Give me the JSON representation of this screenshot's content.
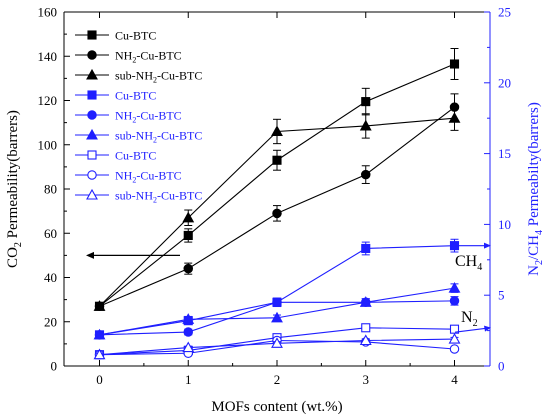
{
  "chart_data": {
    "type": "line",
    "x": [
      0,
      1,
      2,
      3,
      4
    ],
    "xlabel": "MOFs content (wt.%)",
    "xlim": [
      -0.4,
      4.4
    ],
    "x_ticks": [
      "0",
      "1",
      "2",
      "3",
      "4"
    ],
    "ylabel_left": {
      "pre": "CO",
      "sub": "2",
      "post": " Permeability(barrers)"
    },
    "ylim_left": [
      0,
      160
    ],
    "y_ticks_left": [
      "0",
      "20",
      "40",
      "60",
      "80",
      "100",
      "120",
      "140",
      "160"
    ],
    "ylabel_right": {
      "a": "N",
      "a_sub": "2",
      "mid": "/CH",
      "b_sub": "4",
      "post": " Permeabilty(barrers)"
    },
    "ylim_right": [
      0,
      25
    ],
    "y_ticks_right": [
      "0",
      "5",
      "10",
      "15",
      "20",
      "25"
    ],
    "annotations": {
      "ch4": {
        "pre": "CH",
        "sub": "4"
      },
      "n2": {
        "pre": "N",
        "sub": "2"
      }
    },
    "colors": {
      "black": "#000000",
      "blue": "#1f1fff",
      "right_axis": "#2323ff"
    },
    "grid": false,
    "legend_position": "top-left",
    "series": [
      {
        "name": "Cu-BTC",
        "name_parts": [
          "Cu-BTC"
        ],
        "axis": "left",
        "color": "#000000",
        "marker": "square-filled",
        "values": [
          27,
          59,
          93,
          119.5,
          136.5
        ],
        "errors": [
          1.5,
          3,
          4.5,
          6,
          7
        ]
      },
      {
        "name": "NH2-Cu-BTC",
        "name_parts": [
          "NH",
          "2",
          "-Cu-BTC"
        ],
        "axis": "left",
        "color": "#000000",
        "marker": "circle-filled",
        "values": [
          27,
          44,
          69,
          86.5,
          117
        ],
        "errors": [
          1.5,
          2.5,
          3.5,
          4,
          6
        ]
      },
      {
        "name": "sub-NH2-Cu-BTC",
        "name_parts": [
          "sub-NH",
          "2",
          "-Cu-BTC"
        ],
        "axis": "left",
        "color": "#000000",
        "marker": "triangle-filled",
        "values": [
          27,
          67,
          106,
          108.5,
          112
        ],
        "errors": [
          1.5,
          3.5,
          5.5,
          5.5,
          5.5
        ]
      },
      {
        "name": "Cu-BTC",
        "name_parts": [
          "Cu-BTC"
        ],
        "axis": "right",
        "color": "#1f1fff",
        "marker": "square-filled",
        "values": [
          2.2,
          3.2,
          4.5,
          8.3,
          8.5
        ],
        "errors": [
          0.2,
          0.25,
          0.3,
          0.45,
          0.45
        ]
      },
      {
        "name": "NH2-Cu-BTC",
        "name_parts": [
          "NH",
          "2",
          "-Cu-BTC"
        ],
        "axis": "right",
        "color": "#1f1fff",
        "marker": "circle-filled",
        "values": [
          2.2,
          2.4,
          4.5,
          4.5,
          4.6
        ],
        "errors": [
          0.15,
          0.2,
          0.25,
          0.25,
          0.3
        ]
      },
      {
        "name": "sub-NH2-Cu-BTC",
        "name_parts": [
          "sub-NH",
          "2",
          "-Cu-BTC"
        ],
        "axis": "right",
        "color": "#1f1fff",
        "marker": "triangle-filled",
        "values": [
          2.2,
          3.3,
          3.4,
          4.5,
          5.5
        ],
        "errors": [
          0.15,
          0.2,
          0.2,
          0.25,
          0.3
        ]
      },
      {
        "name": "Cu-BTC",
        "name_parts": [
          "Cu-BTC"
        ],
        "axis": "right",
        "color": "#1f1fff",
        "marker": "square-open",
        "values": [
          0.8,
          1.1,
          2.0,
          2.7,
          2.6
        ],
        "errors": [
          0.1,
          0.1,
          0.15,
          0.15,
          0.15
        ]
      },
      {
        "name": "NH2-Cu-BTC",
        "name_parts": [
          "NH",
          "2",
          "-Cu-BTC"
        ],
        "axis": "right",
        "color": "#1f1fff",
        "marker": "circle-open",
        "values": [
          0.8,
          0.9,
          1.8,
          1.7,
          1.2
        ],
        "errors": [
          0.1,
          0.1,
          0.12,
          0.12,
          0.1
        ]
      },
      {
        "name": "sub-NH2-Cu-BTC",
        "name_parts": [
          "sub-NH",
          "2",
          "-Cu-BTC"
        ],
        "axis": "right",
        "color": "#1f1fff",
        "marker": "triangle-open",
        "values": [
          0.8,
          1.3,
          1.6,
          1.8,
          1.9
        ],
        "errors": [
          0.1,
          0.1,
          0.12,
          0.12,
          0.12
        ]
      }
    ]
  }
}
